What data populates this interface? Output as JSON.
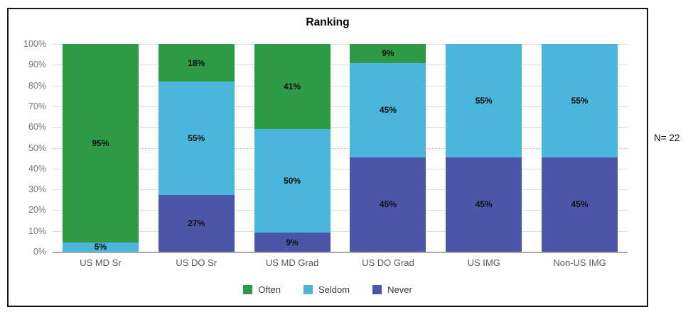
{
  "chart_data": {
    "type": "bar",
    "variant": "stacked-100-percent",
    "title": "Ranking",
    "annotation": "N= 22",
    "categories": [
      "US MD Sr",
      "US DO Sr",
      "US MD Grad",
      "US DO Grad",
      "US IMG",
      "Non-US IMG"
    ],
    "y_axis": {
      "min": 0,
      "max": 100,
      "step": 10,
      "tick_labels": [
        "0%",
        "10%",
        "20%",
        "30%",
        "40%",
        "50%",
        "60%",
        "70%",
        "80%",
        "90%",
        "100%"
      ],
      "dotted_gridline_at": 50
    },
    "series": [
      {
        "name": "Often",
        "color": "#2e9b44",
        "values": [
          95,
          18,
          41,
          9,
          0,
          0
        ],
        "values_exact": [
          95.45,
          18.18,
          40.91,
          9.09,
          0,
          0
        ],
        "display_labels": [
          "95%",
          "18%",
          "41%",
          "9%",
          "",
          ""
        ]
      },
      {
        "name": "Seldom",
        "color": "#4ab6db",
        "values": [
          5,
          55,
          50,
          45,
          55,
          55
        ],
        "values_exact": [
          4.55,
          54.55,
          50.0,
          45.45,
          54.55,
          54.55
        ],
        "display_labels": [
          "5%",
          "55%",
          "50%",
          "45%",
          "55%",
          "55%"
        ]
      },
      {
        "name": "Never",
        "color": "#4c56a9",
        "values": [
          0,
          27,
          9,
          45,
          45,
          45
        ],
        "values_exact": [
          0,
          27.27,
          9.09,
          45.45,
          45.45,
          45.45
        ],
        "display_labels": [
          "",
          "27%",
          "9%",
          "45%",
          "45%",
          "45%"
        ]
      }
    ],
    "stack_order_bottom_to_top": [
      "Never",
      "Seldom",
      "Often"
    ],
    "legend": {
      "position": "bottom",
      "items": [
        "Often",
        "Seldom",
        "Never"
      ]
    }
  }
}
